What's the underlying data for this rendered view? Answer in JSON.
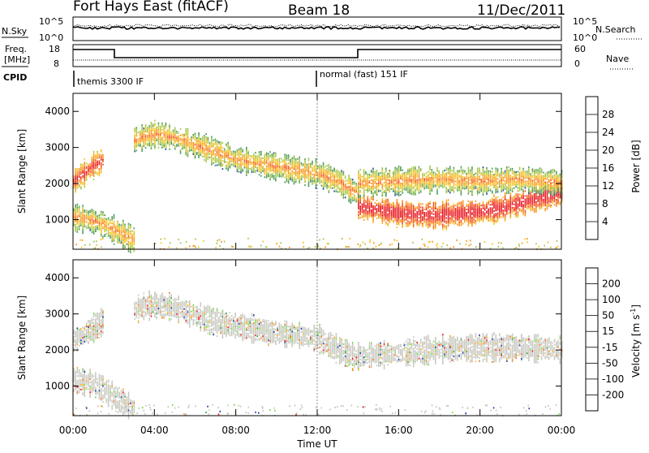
{
  "header": {
    "title_left": "Fort Hays East (fitACF)",
    "title_center": "Beam 18",
    "title_right": "11/Dec/2011"
  },
  "nsky_panel": {
    "left_label": "N.Sky",
    "left_ticks": [
      "10^5",
      "10^0"
    ],
    "right_ticks": [
      "10^5",
      "10^0"
    ],
    "right_label": "N.Search"
  },
  "freq_panel": {
    "left_label_line1": "Freq.",
    "left_label_line2": "[MHz]",
    "left_ticks": [
      "18",
      "8"
    ],
    "right_ticks": [
      "60",
      "0"
    ],
    "right_label": "Nave",
    "cpid_label": "CPID",
    "modes": [
      "themis 3300 IF",
      "normal (fast) 151 IF"
    ]
  },
  "axes": {
    "ylabel": "Slant Range [km]",
    "xlabel": "Time UT",
    "x_ticks": [
      "00:00",
      "04:00",
      "08:00",
      "12:00",
      "16:00",
      "20:00",
      "00:00"
    ],
    "y_ticks": [
      "1000",
      "2000",
      "3000",
      "4000"
    ]
  },
  "power_colorbar": {
    "label": "Power [dB]",
    "ticks": [
      "28",
      "24",
      "20",
      "16",
      "12",
      "8",
      "4"
    ],
    "colors": [
      "#e8121a",
      "#f4501a",
      "#f8941e",
      "#f5c31e",
      "#a5c64a",
      "#4c9a5a",
      "#2a4e96",
      "#1010e6"
    ]
  },
  "velocity_colorbar": {
    "label": "Velocity [m s",
    "label_sup": "-1",
    "label_end": "]",
    "ticks": [
      "200",
      "100",
      "50",
      "15",
      "-15",
      "-50",
      "-100",
      "-200"
    ],
    "colors": [
      "#1a3ca8",
      "#3a7a9a",
      "#3e9a48",
      "#79d94a",
      "#c8c8c0",
      "#f7ab1e",
      "#f0761a",
      "#ee2020",
      "#e00000"
    ]
  },
  "chart_data": [
    {
      "type": "heatmap",
      "title": "Fort Hays East (fitACF)  Beam 18  11/Dec/2011",
      "xlabel": "Time UT",
      "ylabel": "Slant Range [km]",
      "xlim": [
        0,
        24
      ],
      "ylim": [
        180,
        4500
      ],
      "color_quantity": "Power [dB]",
      "color_ticks": [
        4,
        8,
        12,
        16,
        20,
        24,
        28
      ],
      "echo_bands": [
        {
          "x": [
            0,
            0.5,
            1.0,
            1.5
          ],
          "y_center": [
            2050,
            2250,
            2500,
            2650
          ],
          "power": 22
        },
        {
          "x": [
            0,
            1.0,
            2.0,
            3.0
          ],
          "y_center": [
            1050,
            950,
            700,
            400
          ],
          "power": 16
        },
        {
          "x": [
            3,
            4,
            5,
            6,
            7,
            8,
            9,
            10,
            11,
            12,
            13,
            14
          ],
          "y_center": [
            3200,
            3350,
            3250,
            3050,
            2850,
            2650,
            2550,
            2450,
            2350,
            2250,
            2050,
            1700
          ],
          "power": 16
        },
        {
          "x": [
            14,
            15,
            16,
            17,
            18,
            19,
            20,
            21,
            22,
            23,
            24
          ],
          "y_center": [
            1350,
            1250,
            1150,
            1120,
            1100,
            1150,
            1200,
            1300,
            1450,
            1600,
            1750
          ],
          "power": 26
        },
        {
          "x": [
            14,
            16,
            18,
            20,
            22,
            24
          ],
          "y_center": [
            2000,
            2050,
            2100,
            2050,
            2100,
            2000
          ],
          "power": 16
        }
      ]
    },
    {
      "type": "heatmap",
      "xlabel": "Time UT",
      "ylabel": "Slant Range [km]",
      "xlim": [
        0,
        24
      ],
      "ylim": [
        180,
        4500
      ],
      "color_quantity": "Velocity [m s-1]",
      "color_ticks": [
        -200,
        -100,
        -50,
        -15,
        15,
        50,
        100,
        200
      ],
      "echo_bands": [
        {
          "x": [
            0,
            0.5,
            1.0,
            1.5
          ],
          "y_center": [
            2250,
            2400,
            2600,
            2800
          ],
          "velocity": 0
        },
        {
          "x": [
            0,
            1.0,
            2.0,
            3.0
          ],
          "y_center": [
            1150,
            1050,
            700,
            350
          ],
          "velocity": 0
        },
        {
          "x": [
            3,
            4,
            5,
            6,
            7,
            8,
            9,
            10,
            11,
            12,
            13,
            14
          ],
          "y_center": [
            3100,
            3250,
            3150,
            2950,
            2750,
            2650,
            2550,
            2450,
            2400,
            2300,
            2000,
            1750
          ],
          "velocity": 0
        },
        {
          "x": [
            14,
            16,
            18,
            20,
            22,
            24
          ],
          "y_center": [
            1800,
            1900,
            2000,
            2050,
            2050,
            2000
          ],
          "velocity": 0
        }
      ]
    }
  ]
}
